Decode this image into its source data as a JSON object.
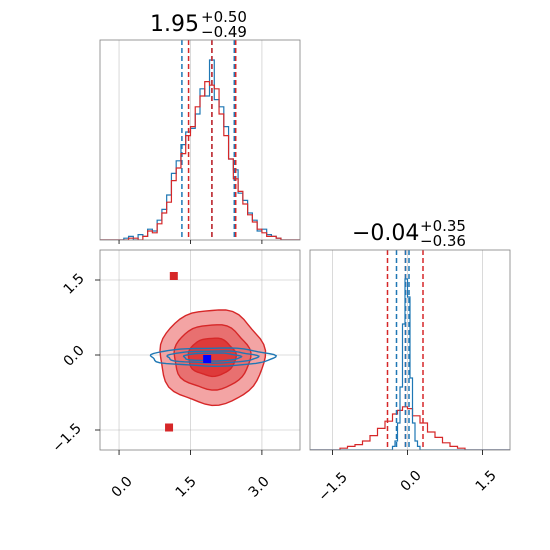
{
  "chart_data": [
    {
      "panel": "top-left",
      "type": "histogram",
      "title_value": "1.95",
      "title_upper": "+0.50",
      "title_lower": "−0.49",
      "xlim": [
        -0.4,
        3.8
      ],
      "grid": true,
      "series": [
        {
          "color": "#1f77b4",
          "quantile_lines": [
            1.32,
            1.95,
            2.42
          ],
          "bins": [
            [
              -0.4,
              0.0
            ],
            [
              0.0,
              0.0
            ],
            [
              0.1,
              0.01
            ],
            [
              0.2,
              0.02
            ],
            [
              0.3,
              0.0
            ],
            [
              0.4,
              0.03
            ],
            [
              0.5,
              0.02
            ],
            [
              0.6,
              0.06
            ],
            [
              0.7,
              0.05
            ],
            [
              0.8,
              0.11
            ],
            [
              0.9,
              0.17
            ],
            [
              1.0,
              0.25
            ],
            [
              1.1,
              0.37
            ],
            [
              1.2,
              0.44
            ],
            [
              1.3,
              0.53
            ],
            [
              1.4,
              0.6
            ],
            [
              1.5,
              0.62
            ],
            [
              1.6,
              0.7
            ],
            [
              1.7,
              0.84
            ],
            [
              1.8,
              0.8
            ],
            [
              1.9,
              1.0
            ],
            [
              2.0,
              0.78
            ],
            [
              2.1,
              0.74
            ],
            [
              2.2,
              0.63
            ],
            [
              2.3,
              0.45
            ],
            [
              2.4,
              0.39
            ],
            [
              2.5,
              0.26
            ],
            [
              2.6,
              0.22
            ],
            [
              2.7,
              0.15
            ],
            [
              2.8,
              0.11
            ],
            [
              2.9,
              0.05
            ],
            [
              3.0,
              0.06
            ],
            [
              3.1,
              0.03
            ],
            [
              3.2,
              0.02
            ],
            [
              3.3,
              0.01
            ],
            [
              3.4,
              0.0
            ],
            [
              3.5,
              0.0
            ]
          ]
        },
        {
          "color": "#d62728",
          "quantile_lines": [
            1.46,
            1.95,
            2.45
          ],
          "bins": [
            [
              -0.4,
              0.0
            ],
            [
              0.0,
              0.0
            ],
            [
              0.1,
              0.0
            ],
            [
              0.2,
              0.01
            ],
            [
              0.3,
              0.01
            ],
            [
              0.4,
              0.0
            ],
            [
              0.5,
              0.02
            ],
            [
              0.6,
              0.05
            ],
            [
              0.7,
              0.04
            ],
            [
              0.8,
              0.09
            ],
            [
              0.9,
              0.15
            ],
            [
              1.0,
              0.21
            ],
            [
              1.1,
              0.33
            ],
            [
              1.2,
              0.4
            ],
            [
              1.3,
              0.48
            ],
            [
              1.4,
              0.58
            ],
            [
              1.5,
              0.63
            ],
            [
              1.6,
              0.74
            ],
            [
              1.7,
              0.8
            ],
            [
              1.8,
              0.88
            ],
            [
              1.9,
              0.86
            ],
            [
              2.0,
              0.84
            ],
            [
              2.1,
              0.7
            ],
            [
              2.2,
              0.58
            ],
            [
              2.3,
              0.45
            ],
            [
              2.4,
              0.34
            ],
            [
              2.5,
              0.27
            ],
            [
              2.6,
              0.2
            ],
            [
              2.7,
              0.14
            ],
            [
              2.8,
              0.1
            ],
            [
              2.9,
              0.06
            ],
            [
              3.0,
              0.04
            ],
            [
              3.1,
              0.02
            ],
            [
              3.2,
              0.02
            ],
            [
              3.3,
              0.01
            ],
            [
              3.4,
              0.0
            ],
            [
              3.5,
              0.0
            ]
          ]
        }
      ]
    },
    {
      "panel": "bottom-left",
      "type": "contour",
      "xlim": [
        -0.4,
        3.8
      ],
      "ylim": [
        -1.9,
        2.1
      ],
      "xticks": [
        "0.0",
        "1.5",
        "3.0"
      ],
      "yticks": [
        "−1.5",
        "0.0",
        "1.5"
      ],
      "xtick_values": [
        0.0,
        1.5,
        3.0
      ],
      "ytick_values": [
        -1.5,
        0.0,
        1.5
      ],
      "grid": true,
      "contours": [
        {
          "color": "#d62728",
          "center": [
            1.95,
            -0.04
          ],
          "levels": [
            [
              1.1,
              0.95
            ],
            [
              0.8,
              0.65
            ],
            [
              0.5,
              0.38
            ]
          ]
        },
        {
          "color": "#1f77b4",
          "center": [
            1.95,
            -0.04
          ],
          "levels": [
            [
              1.3,
              0.18
            ],
            [
              0.95,
              0.12
            ],
            [
              0.6,
              0.08
            ]
          ]
        }
      ],
      "markers": [
        {
          "color": "#d62728",
          "x": 1.15,
          "y": 1.58
        },
        {
          "color": "#d62728",
          "x": 1.05,
          "y": -1.45
        },
        {
          "color": "#0000ff",
          "x": 1.85,
          "y": -0.08
        }
      ]
    },
    {
      "panel": "bottom-right",
      "type": "histogram",
      "title_value": "−0.04",
      "title_upper": "+0.35",
      "title_lower": "−0.36",
      "xlim": [
        -1.95,
        2.05
      ],
      "xticks": [
        "−1.5",
        "0.0",
        "1.5"
      ],
      "xtick_values": [
        -1.5,
        0.0,
        1.5
      ],
      "grid": true,
      "series": [
        {
          "color": "#d62728",
          "quantile_lines": [
            -0.4,
            -0.04,
            0.31
          ],
          "bins": [
            [
              -1.95,
              0.0
            ],
            [
              -1.35,
              0.01
            ],
            [
              -1.2,
              0.02
            ],
            [
              -1.05,
              0.03
            ],
            [
              -0.9,
              0.05
            ],
            [
              -0.75,
              0.08
            ],
            [
              -0.6,
              0.12
            ],
            [
              -0.45,
              0.16
            ],
            [
              -0.3,
              0.2
            ],
            [
              -0.2,
              0.22
            ],
            [
              -0.1,
              0.24
            ],
            [
              0.0,
              0.23
            ],
            [
              0.1,
              0.19
            ],
            [
              0.25,
              0.15
            ],
            [
              0.4,
              0.1
            ],
            [
              0.55,
              0.07
            ],
            [
              0.7,
              0.04
            ],
            [
              0.85,
              0.02
            ],
            [
              1.0,
              0.01
            ],
            [
              1.15,
              0.0
            ],
            [
              1.3,
              0.0
            ]
          ]
        },
        {
          "color": "#1f77b4",
          "quantile_lines": [
            -0.22,
            -0.04,
            0.03
          ],
          "bins": [
            [
              -1.95,
              0.0
            ],
            [
              -0.35,
              0.0
            ],
            [
              -0.3,
              0.02
            ],
            [
              -0.25,
              0.05
            ],
            [
              -0.2,
              0.15
            ],
            [
              -0.15,
              0.35
            ],
            [
              -0.1,
              0.7
            ],
            [
              -0.05,
              0.95
            ],
            [
              0.0,
              0.85
            ],
            [
              0.05,
              0.4
            ],
            [
              0.1,
              0.15
            ],
            [
              0.15,
              0.05
            ],
            [
              0.2,
              0.02
            ],
            [
              0.25,
              0.0
            ],
            [
              0.3,
              0.0
            ]
          ]
        }
      ]
    }
  ]
}
